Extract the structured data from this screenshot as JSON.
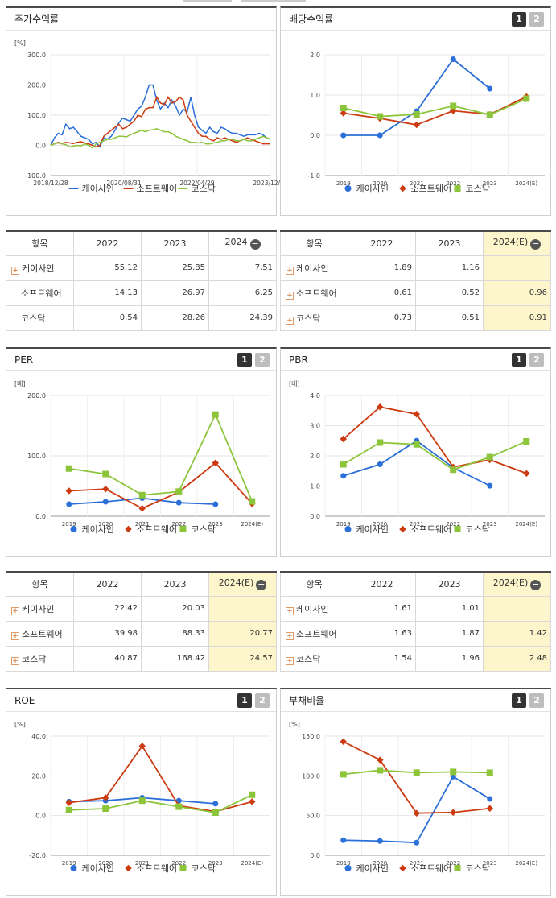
{
  "legend": [
    "케이사인",
    "소프트웨어",
    "코스닥"
  ],
  "colors": [
    "#2b6fd8",
    "#cc3a10",
    "#8cc43a"
  ],
  "btn1": "1",
  "btn2": "2",
  "panels": {
    "p1": {
      "title": "주가수익률",
      "unit": "[%]"
    },
    "p2": {
      "title": "배당수익률",
      "unit": ""
    },
    "p3": {
      "title": "PER",
      "unit": "[배]"
    },
    "p4": {
      "title": "PBR",
      "unit": "[배]"
    },
    "p5": {
      "title": "ROE",
      "unit": "[%]"
    },
    "p6": {
      "title": "부채비율",
      "unit": "[%]"
    }
  },
  "tables": {
    "t1": {
      "head": [
        "항목",
        "2022",
        "2023",
        "2024"
      ],
      "rows": [
        [
          "케이사인",
          "55.12",
          "25.85",
          "7.51"
        ],
        [
          "소프트웨어",
          "14.13",
          "26.97",
          "6.25"
        ],
        [
          "코스닥",
          "0.54",
          "28.26",
          "24.39"
        ]
      ]
    },
    "t2": {
      "head": [
        "항목",
        "2022",
        "2023",
        "2024(E)"
      ],
      "rows": [
        [
          "케이사인",
          "1.89",
          "1.16",
          ""
        ],
        [
          "소프트웨어",
          "0.61",
          "0.52",
          "0.96"
        ],
        [
          "코스닥",
          "0.73",
          "0.51",
          "0.91"
        ]
      ]
    },
    "t3": {
      "head": [
        "항목",
        "2022",
        "2023",
        "2024(E)"
      ],
      "rows": [
        [
          "케이사인",
          "22.42",
          "20.03",
          ""
        ],
        [
          "소프트웨어",
          "39.98",
          "88.33",
          "20.77"
        ],
        [
          "코스닥",
          "40.87",
          "168.42",
          "24.57"
        ]
      ]
    },
    "t4": {
      "head": [
        "항목",
        "2022",
        "2023",
        "2024(E)"
      ],
      "rows": [
        [
          "케이사인",
          "1.61",
          "1.01",
          ""
        ],
        [
          "소프트웨어",
          "1.63",
          "1.87",
          "1.42"
        ],
        [
          "코스닥",
          "1.54",
          "1.96",
          "2.48"
        ]
      ]
    }
  },
  "chart_data": [
    {
      "id": "c1",
      "type": "line",
      "xticks": [
        "2018/12/28",
        "2020/08/31",
        "2022/04/29",
        "2023/12/28"
      ],
      "yticks": [
        "300.0",
        "200.0",
        "100.0",
        "0.0",
        "-100.0"
      ],
      "ylim": [
        -100,
        300
      ],
      "series": [
        {
          "name": "케이사인",
          "values": [
            0,
            25,
            40,
            35,
            70,
            55,
            60,
            45,
            30,
            25,
            20,
            5,
            10,
            -5,
            25,
            20,
            30,
            50,
            75,
            90,
            85,
            80,
            100,
            120,
            130,
            160,
            200,
            200,
            150,
            120,
            140,
            125,
            150,
            130,
            100,
            120,
            110,
            160,
            100,
            60,
            50,
            40,
            60,
            45,
            40,
            60,
            55,
            45,
            40,
            40,
            35,
            30,
            35,
            35,
            35,
            40,
            35,
            25,
            20
          ]
        },
        {
          "name": "소프트웨어",
          "values": [
            0,
            5,
            10,
            5,
            10,
            8,
            6,
            10,
            12,
            8,
            5,
            0,
            -5,
            0,
            30,
            40,
            50,
            60,
            70,
            55,
            60,
            70,
            80,
            100,
            95,
            120,
            125,
            125,
            160,
            140,
            135,
            160,
            140,
            145,
            160,
            150,
            100,
            80,
            60,
            40,
            30,
            30,
            20,
            15,
            25,
            20,
            25,
            20,
            15,
            10,
            15,
            20,
            25,
            20,
            15,
            10,
            5,
            5,
            5
          ]
        },
        {
          "name": "코스닥",
          "values": [
            0,
            5,
            8,
            5,
            2,
            -5,
            -2,
            0,
            -2,
            5,
            0,
            -8,
            5,
            10,
            15,
            20,
            20,
            25,
            30,
            30,
            28,
            35,
            40,
            45,
            50,
            45,
            50,
            52,
            55,
            50,
            45,
            45,
            40,
            30,
            25,
            20,
            15,
            10,
            10,
            8,
            10,
            5,
            5,
            8,
            10,
            15,
            15,
            20,
            20,
            15,
            15,
            20,
            15,
            15,
            20,
            25,
            30,
            25,
            20
          ]
        }
      ]
    },
    {
      "id": "c2",
      "type": "line",
      "categories": [
        "2019",
        "2020",
        "2021",
        "2022",
        "2023",
        "2024(E)"
      ],
      "yticks": [
        "2.0",
        "1.0",
        "0.0",
        "-1.0"
      ],
      "ylim": [
        -1,
        2
      ],
      "series": [
        {
          "name": "케이사인",
          "values": [
            0.0,
            0.0,
            0.6,
            1.89,
            1.16,
            null
          ]
        },
        {
          "name": "소프트웨어",
          "values": [
            0.55,
            0.42,
            0.26,
            0.61,
            0.52,
            0.96
          ]
        },
        {
          "name": "코스닥",
          "values": [
            0.68,
            0.47,
            0.52,
            0.73,
            0.51,
            0.91
          ]
        }
      ]
    },
    {
      "id": "c3",
      "type": "line",
      "categories": [
        "2019",
        "2020",
        "2021",
        "2022",
        "2023",
        "2024(E)"
      ],
      "yticks": [
        "200.0",
        "100.0",
        "0.0"
      ],
      "ylim": [
        0,
        200
      ],
      "series": [
        {
          "name": "케이사인",
          "values": [
            20,
            24,
            30,
            22.42,
            20.03,
            null
          ]
        },
        {
          "name": "소프트웨어",
          "values": [
            42,
            45,
            13,
            39.98,
            88.33,
            20.77
          ]
        },
        {
          "name": "코스닥",
          "values": [
            79,
            70,
            35,
            40.87,
            168.42,
            24.57
          ]
        }
      ]
    },
    {
      "id": "c4",
      "type": "line",
      "categories": [
        "2019",
        "2020",
        "2021",
        "2022",
        "2023",
        "2024(E)"
      ],
      "yticks": [
        "4.0",
        "3.0",
        "2.0",
        "1.0",
        "0.0"
      ],
      "ylim": [
        0,
        4
      ],
      "series": [
        {
          "name": "케이사인",
          "values": [
            1.34,
            1.72,
            2.5,
            1.61,
            1.01,
            null
          ]
        },
        {
          "name": "소프트웨어",
          "values": [
            2.56,
            3.62,
            3.38,
            1.63,
            1.87,
            1.42
          ]
        },
        {
          "name": "코스닥",
          "values": [
            1.72,
            2.44,
            2.38,
            1.54,
            1.96,
            2.48
          ]
        }
      ]
    },
    {
      "id": "c5",
      "type": "line",
      "categories": [
        "2019",
        "2020",
        "2021",
        "2022",
        "2023",
        "2024(E)"
      ],
      "yticks": [
        "40.0",
        "20.0",
        "0.0",
        "-20.0"
      ],
      "ylim": [
        -20,
        40
      ],
      "series": [
        {
          "name": "케이사인",
          "values": [
            7,
            7.5,
            9,
            7.5,
            6,
            null
          ]
        },
        {
          "name": "소프트웨어",
          "values": [
            6.5,
            9,
            35,
            5,
            2,
            7
          ]
        },
        {
          "name": "코스닥",
          "values": [
            2.8,
            3.5,
            7.5,
            4.5,
            1.5,
            10.5
          ]
        }
      ]
    },
    {
      "id": "c6",
      "type": "line",
      "categories": [
        "2019",
        "2020",
        "2021",
        "2022",
        "2023",
        "2024(E)"
      ],
      "yticks": [
        "150.0",
        "100.0",
        "50.0",
        "0.0"
      ],
      "ylim": [
        0,
        150
      ],
      "series": [
        {
          "name": "케이사인",
          "values": [
            19,
            18,
            16,
            99,
            71,
            null
          ]
        },
        {
          "name": "소프트웨어",
          "values": [
            143,
            120,
            53,
            54,
            59,
            null
          ]
        },
        {
          "name": "코스닥",
          "values": [
            102,
            107,
            104,
            105,
            104,
            null
          ]
        }
      ]
    }
  ]
}
